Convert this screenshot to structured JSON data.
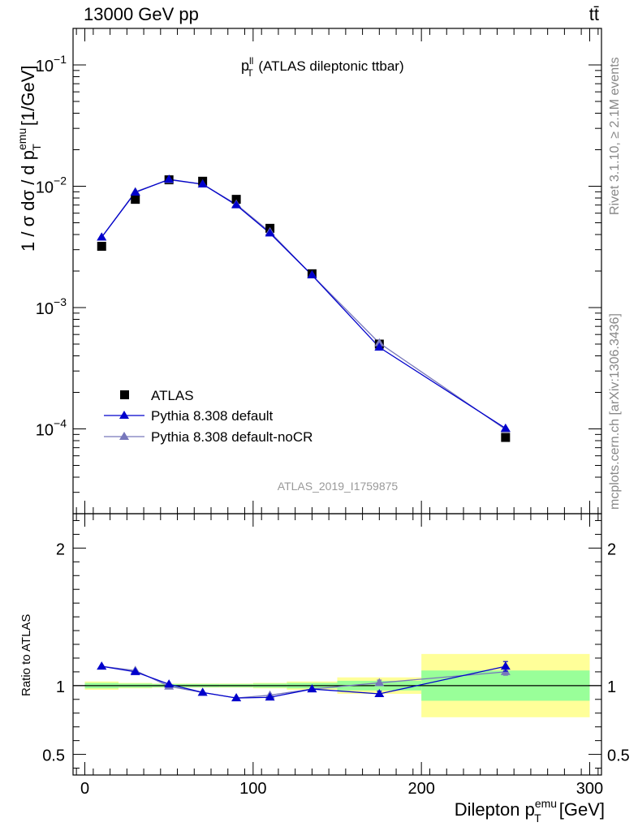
{
  "header": {
    "left": "13000 GeV pp",
    "right": "tt̄"
  },
  "side_labels": {
    "rivet": "Rivet 3.1.10, ≥ 2.1M events",
    "mcplots": "mcplots.cern.ch [arXiv:1306.3436]"
  },
  "watermark": "ATLAS_2019_I1759875",
  "colors": {
    "atlas": "#000000",
    "default": "#0000cc",
    "nocr": "#7777bb",
    "band_inner": "#99ff99",
    "band_outer": "#ffff99"
  },
  "chart_data": [
    {
      "type": "scatter",
      "title_main": "p",
      "title_sup": "ll",
      "title_sub": "T",
      "title_rest": " (ATLAS dileptonic ttbar)",
      "ylabel_text": "1 / σ  dσ / d p",
      "ylabel_sup": "emu",
      "ylabel_sub": "T",
      "ylabel_unit": " [1/GeV]",
      "yscale": "log",
      "ylim": [
        2e-05,
        0.2
      ],
      "xlim": [
        -7,
        307
      ],
      "yticks": [
        {
          "value": 0.1,
          "mant": "10",
          "exp": "−1"
        },
        {
          "value": 0.01,
          "mant": "10",
          "exp": "−2"
        },
        {
          "value": 0.001,
          "mant": "10",
          "exp": "−3"
        },
        {
          "value": 0.0001,
          "mant": "10",
          "exp": "−4"
        }
      ],
      "x": [
        10,
        30,
        50,
        70,
        90,
        110,
        135,
        175,
        250
      ],
      "series": [
        {
          "name": "ATLAS",
          "marker": "square",
          "values": [
            0.0032,
            0.0078,
            0.0113,
            0.011,
            0.0078,
            0.0045,
            0.0019,
            0.0005,
            8.5e-05
          ]
        },
        {
          "name": "Pythia 8.308 default",
          "marker": "triangle",
          "values": [
            0.0038,
            0.0089,
            0.0114,
            0.0104,
            0.007,
            0.0041,
            0.00185,
            0.00047,
            0.000101
          ]
        },
        {
          "name": "Pythia 8.308 default-noCR",
          "marker": "triangle",
          "values": [
            0.0038,
            0.009,
            0.0113,
            0.0104,
            0.0071,
            0.0042,
            0.00185,
            0.00051,
            9.9e-05
          ]
        }
      ],
      "legend_position": "bottom-left"
    },
    {
      "type": "scatter",
      "ylabel": "Ratio to ATLAS",
      "xlabel_text": "Dilepton p",
      "xlabel_sup": "emu",
      "xlabel_sub": "T",
      "xlabel_unit": " [GeV]",
      "xlim": [
        -7,
        307
      ],
      "ylim": [
        0.35,
        2.25
      ],
      "xticks": [
        "0",
        "100",
        "200",
        "300"
      ],
      "yticks": [
        "0.5",
        "1",
        "2"
      ],
      "x": [
        10,
        30,
        50,
        70,
        90,
        110,
        135,
        175,
        250
      ],
      "bins": [
        [
          0,
          20
        ],
        [
          20,
          40
        ],
        [
          40,
          60
        ],
        [
          60,
          80
        ],
        [
          80,
          100
        ],
        [
          100,
          120
        ],
        [
          120,
          150
        ],
        [
          150,
          200
        ],
        [
          200,
          300
        ]
      ],
      "band_inner": [
        0.02,
        0.015,
        0.012,
        0.012,
        0.012,
        0.015,
        0.02,
        0.035,
        0.11
      ],
      "band_outer": [
        0.03,
        0.02,
        0.015,
        0.015,
        0.015,
        0.02,
        0.03,
        0.06,
        0.23
      ],
      "series": [
        {
          "name": "Pythia 8.308 default",
          "values": [
            1.14,
            1.1,
            1.01,
            0.95,
            0.91,
            0.915,
            0.975,
            0.94,
            1.14
          ],
          "errors": [
            0,
            0,
            0,
            0,
            0,
            0,
            0,
            0.02,
            0.035
          ]
        },
        {
          "name": "Pythia 8.308 default-noCR",
          "values": [
            1.14,
            1.11,
            0.995,
            0.95,
            0.91,
            0.93,
            0.975,
            1.02,
            1.1
          ],
          "errors": [
            0,
            0,
            0,
            0,
            0,
            0,
            0,
            0.02,
            0.025
          ]
        }
      ]
    }
  ]
}
